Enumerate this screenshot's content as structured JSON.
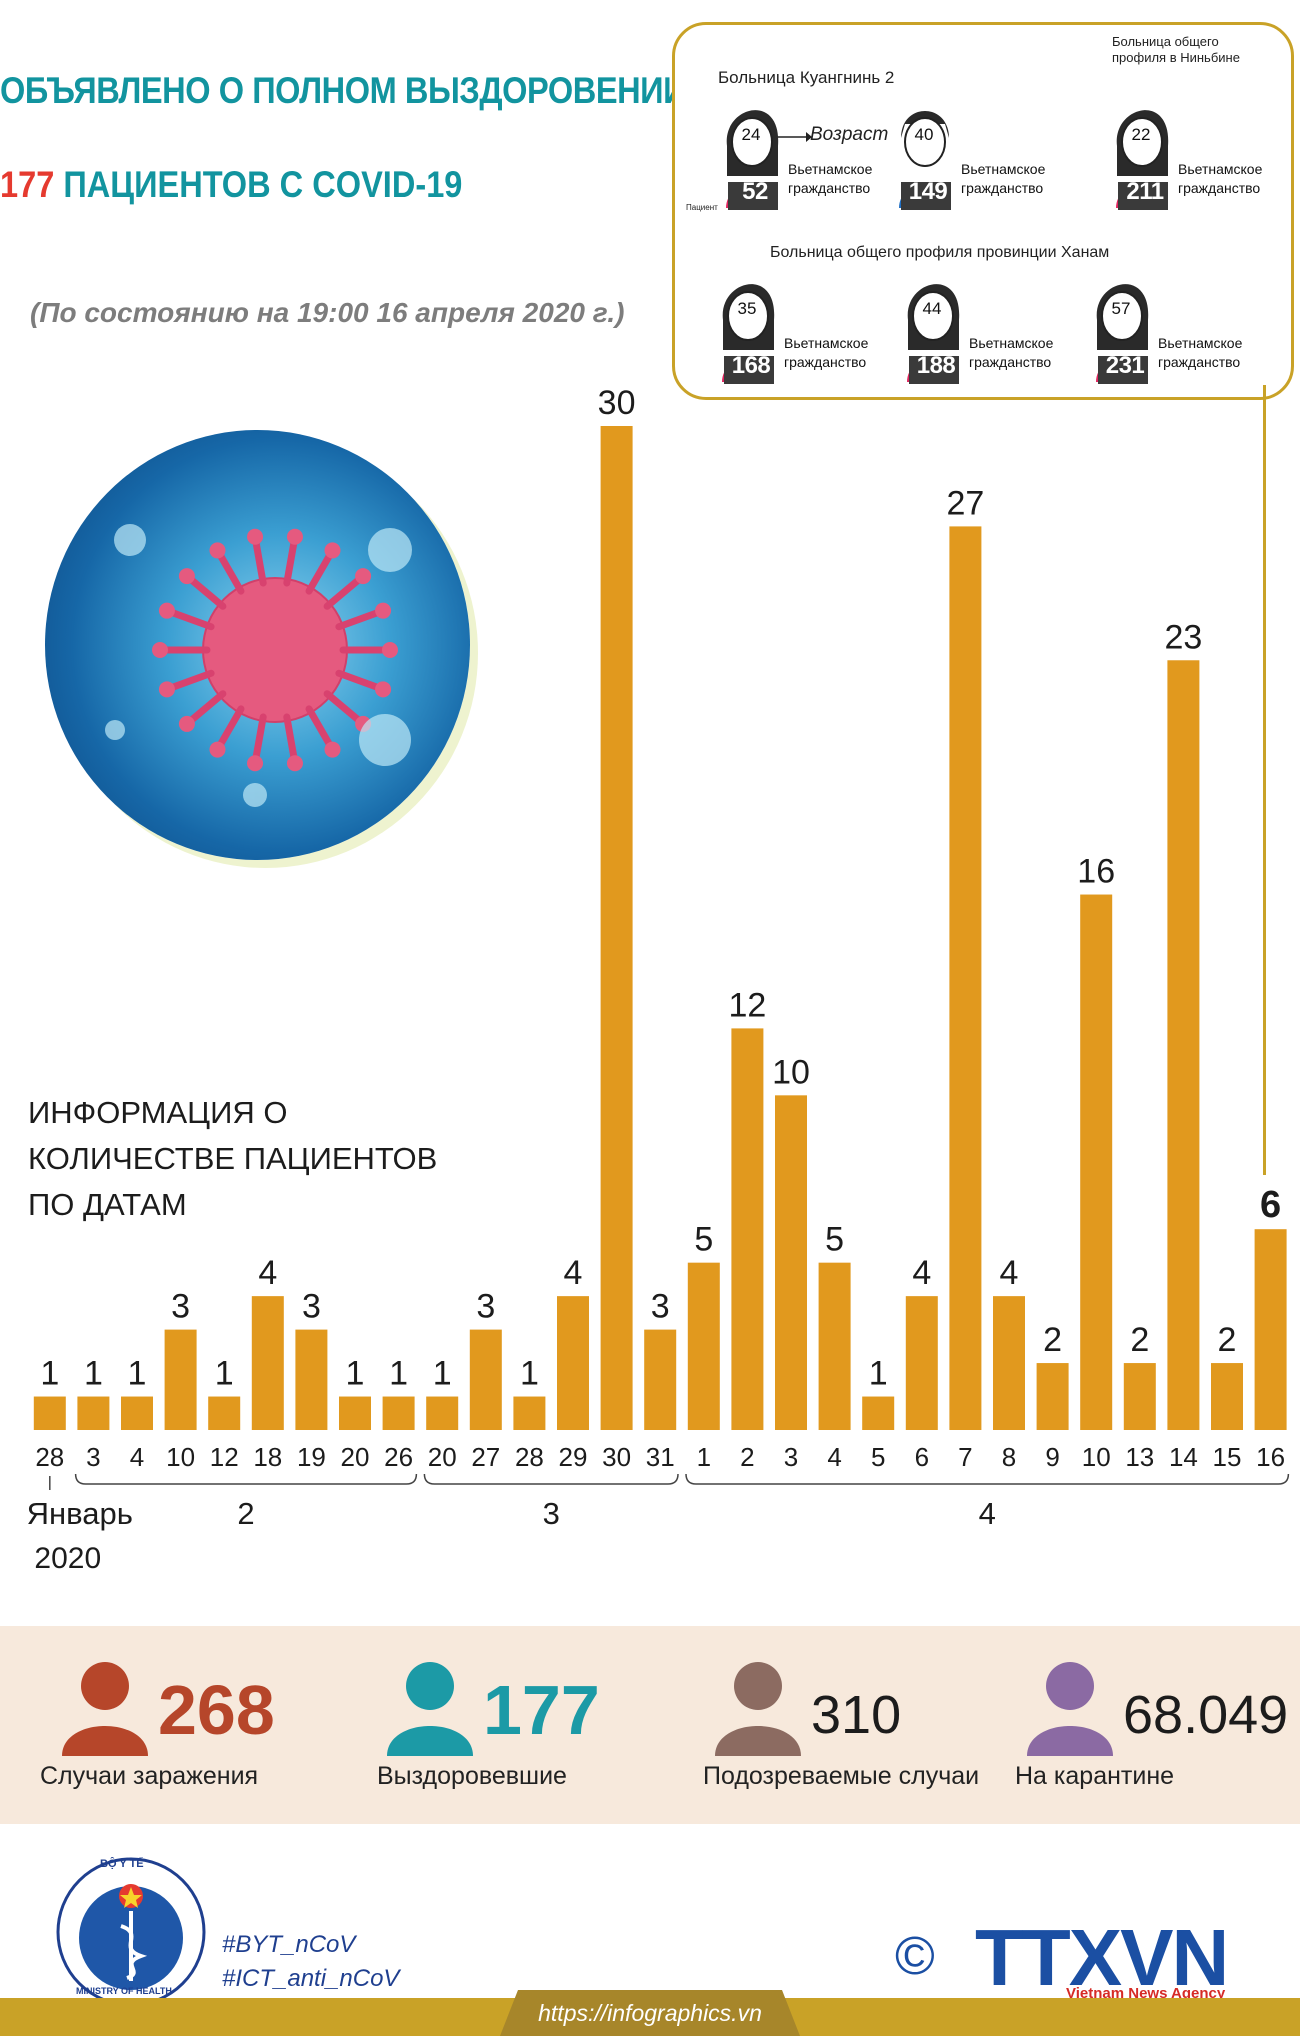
{
  "header": {
    "title_line1": "ОБЪЯВЛЕНО О ПОЛНОМ ВЫЗДОРОВЕНИИ",
    "title_num": "177",
    "title_line2_rest": " ПАЦИЕНТОВ С COVID-19",
    "as_of": "(По состоянию на 19:00 16 апреля 2020 г.)"
  },
  "hospitals": {
    "quang_ninh": "Больница Куангнинь 2",
    "ninh_binh": "Больница общего профиля в Ниньбине",
    "ha_nam": "Больница общего профиля провинции Ханам",
    "age_legend": "Возраст",
    "patient_legend": "Пациент",
    "patients": [
      {
        "age": "24",
        "id": "52",
        "nationality": "Вьетнамское гражданство",
        "gender": "female",
        "color": "#e0245e"
      },
      {
        "age": "40",
        "id": "149",
        "nationality": "Вьетнамское гражданство",
        "gender": "male",
        "color": "#1f6fc4"
      },
      {
        "age": "22",
        "id": "211",
        "nationality": "Вьетнамское гражданство",
        "gender": "female",
        "color": "#e0245e"
      },
      {
        "age": "35",
        "id": "168",
        "nationality": "Вьетнамское гражданство",
        "gender": "female",
        "color": "#e0245e"
      },
      {
        "age": "44",
        "id": "188",
        "nationality": "Вьетнамское гражданство",
        "gender": "female",
        "color": "#e0245e"
      },
      {
        "age": "57",
        "id": "231",
        "nationality": "Вьетнамское гражданство",
        "gender": "female",
        "color": "#e0245e"
      }
    ]
  },
  "section_heading": [
    "ИНФОРМАЦИЯ О",
    "КОЛИЧЕСТВЕ ПАЦИЕНТОВ",
    "ПО ДАТАМ"
  ],
  "chart_data": {
    "type": "bar",
    "title": "ИНФОРМАЦИЯ О КОЛИЧЕСТВЕ ПАЦИЕНТОВ ПО ДАТАМ",
    "bar_color": "#e1991e",
    "categories": [
      "28",
      "3",
      "4",
      "10",
      "12",
      "18",
      "19",
      "20",
      "26",
      "20",
      "27",
      "28",
      "29",
      "30",
      "31",
      "1",
      "2",
      "3",
      "4",
      "5",
      "6",
      "7",
      "8",
      "9",
      "10",
      "13",
      "14",
      "15",
      "16"
    ],
    "values": [
      1,
      1,
      1,
      3,
      1,
      4,
      3,
      1,
      1,
      1,
      3,
      1,
      4,
      30,
      3,
      5,
      12,
      10,
      5,
      1,
      4,
      27,
      4,
      2,
      16,
      2,
      23,
      2,
      6
    ],
    "highlight_index": 28,
    "month_groups": [
      {
        "label": "Январь",
        "label2": "2020",
        "from": 0,
        "to": 0
      },
      {
        "label": "2",
        "from": 1,
        "to": 8
      },
      {
        "label": "3",
        "from": 9,
        "to": 14
      },
      {
        "label": "4",
        "from": 15,
        "to": 28
      }
    ],
    "ylim": [
      0,
      30
    ]
  },
  "stats": [
    {
      "value": "268",
      "label": "Случаи заражения",
      "color": "#b6462a",
      "icon": "person-icon"
    },
    {
      "value": "177",
      "label": "Выздоровевшие",
      "color": "#1c9aa6",
      "icon": "person-icon"
    },
    {
      "value": "310",
      "label": "Подозреваемые случаи",
      "color": "#8c6b61",
      "icon": "person-icon"
    },
    {
      "value": "68.049",
      "label": "На карантине",
      "color": "#8b6aa3",
      "icon": "person-icon"
    }
  ],
  "footer": {
    "tag1": "#BYT_nCoV",
    "tag2": "#ICT_anti_nCoV",
    "url": "https://infographics.vn",
    "ministry_top": "BỘ Y TẾ",
    "ministry_bottom": "MINISTRY OF HEALTH",
    "copyright": "©",
    "agency_logo": "TTXVN",
    "agency_name": "Vietnam News Agency"
  }
}
